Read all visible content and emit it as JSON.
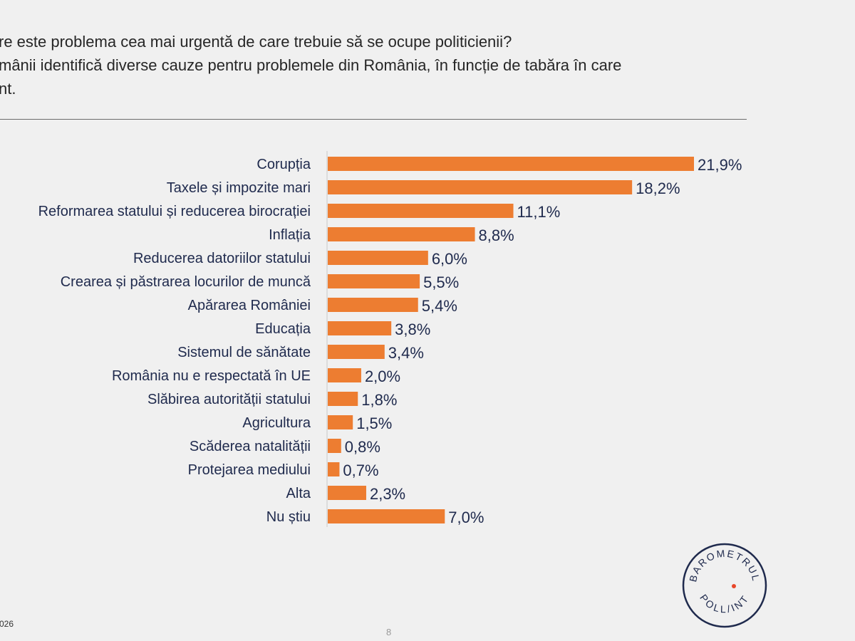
{
  "header": {
    "title_line1": "re este problema cea mai urgentă de care trebuie să se ocupe politicienii?",
    "title_line2": "mânii identifică diverse cauze pentru problemele din România, în funcție de tabăra în care",
    "title_line3": "nt."
  },
  "footer": {
    "left_text": "026",
    "page_number": "8"
  },
  "logo": {
    "top_text": "BAROMETRUL",
    "bottom_text": "POLL/INT"
  },
  "colors": {
    "bar": "#ed7d31",
    "text": "#1f2a4d",
    "logo_dot": "#e8472a"
  },
  "chart_data": {
    "type": "bar",
    "orientation": "horizontal",
    "categories": [
      "Corupția",
      "Taxele și impozite mari",
      "Reformarea statului și reducerea birocrației",
      "Inflația",
      "Reducerea datoriilor statului",
      "Crearea și păstrarea locurilor de muncă",
      "Apărarea României",
      "Educația",
      "Sistemul de sănătate",
      "România nu e respectată în UE",
      "Slăbirea autorității statului",
      "Agricultura",
      "Scăderea natalității",
      "Protejarea mediului",
      "Alta",
      "Nu știu"
    ],
    "values": [
      21.9,
      18.2,
      11.1,
      8.8,
      6.0,
      5.5,
      5.4,
      3.8,
      3.4,
      2.0,
      1.8,
      1.5,
      0.8,
      0.7,
      2.3,
      7.0
    ],
    "labels": [
      "21,9%",
      "18,2%",
      "11,1%",
      "8,8%",
      "6,0%",
      "5,5%",
      "5,4%",
      "3,8%",
      "3,4%",
      "2,0%",
      "1,8%",
      "1,5%",
      "0,8%",
      "0,7%",
      "2,3%",
      "7,0%"
    ],
    "unit": "%",
    "xlim": [
      0,
      22
    ],
    "grid": false
  }
}
